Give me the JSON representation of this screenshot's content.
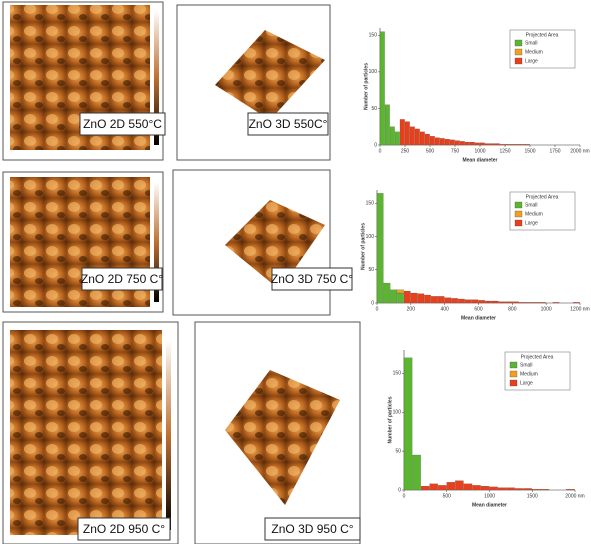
{
  "panels": [
    {
      "label": "ZnO 2D 550°C"
    },
    {
      "label": "ZnO 3D 550C°"
    },
    {
      "label": "ZnO 2D 750 C°"
    },
    {
      "label": "ZnO 3D 750 C°"
    },
    {
      "label": "ZnO 2D 950 C°"
    },
    {
      "label": "ZnO 3D 950 C°"
    }
  ],
  "chart_data": [
    {
      "type": "histogram",
      "x_label": "Mean diameter",
      "y_label": "Number of particles",
      "legend_title": "Projected Area",
      "legend": "upper right",
      "bins": [
        0,
        50,
        100,
        150,
        200,
        250,
        300,
        350,
        400,
        450,
        500,
        550,
        600,
        650,
        700,
        750,
        800,
        850,
        900,
        950,
        1000,
        1050,
        1100,
        1150,
        1200,
        1250,
        1300,
        1350,
        1400,
        1450,
        1500
      ],
      "series": [
        {
          "name": "Small",
          "color": "#5cb531",
          "values": [
            155,
            55,
            25,
            18,
            0,
            0,
            0,
            0,
            0,
            0,
            0,
            0,
            0,
            0,
            0,
            0,
            0,
            0,
            0,
            0,
            0,
            0,
            0,
            0,
            0,
            0,
            0,
            0,
            0,
            0
          ]
        },
        {
          "name": "Medium",
          "color": "#f0a020",
          "values": [
            0,
            0,
            0,
            0,
            0,
            0,
            0,
            0,
            0,
            0,
            0,
            0,
            0,
            0,
            0,
            0,
            0,
            0,
            0,
            0,
            0,
            0,
            0,
            0,
            0,
            0,
            0,
            0,
            0,
            0
          ]
        },
        {
          "name": "Large",
          "color": "#e8401c",
          "values": [
            0,
            0,
            0,
            0,
            35,
            32,
            25,
            22,
            18,
            15,
            12,
            10,
            9,
            8,
            7,
            6,
            5,
            4,
            4,
            3,
            3,
            2,
            2,
            2,
            1,
            1,
            1,
            1,
            1,
            1
          ]
        }
      ],
      "xlim": [
        0,
        2000
      ],
      "xticks": [
        0,
        250,
        500,
        750,
        1000,
        1250,
        1500,
        1750,
        {
          "value": 2000,
          "label": "2000 nm"
        }
      ],
      "ylim": [
        0,
        160
      ],
      "yticks": [
        0,
        50,
        100,
        150
      ]
    },
    {
      "type": "histogram",
      "x_label": "Mean diameter",
      "y_label": "Number of particles",
      "legend_title": "Projected Area",
      "legend": "upper right",
      "bins": [
        0,
        40,
        80,
        120,
        160,
        200,
        240,
        280,
        320,
        360,
        400,
        440,
        480,
        520,
        560,
        600,
        640,
        680,
        720,
        760,
        800,
        840,
        880,
        920,
        960,
        1000,
        1040,
        1080,
        1120,
        1160,
        1200
      ],
      "series": [
        {
          "name": "Small",
          "color": "#5cb531",
          "values": [
            165,
            30,
            20,
            15,
            0,
            0,
            0,
            0,
            0,
            0,
            0,
            0,
            0,
            0,
            0,
            0,
            0,
            0,
            0,
            0,
            0,
            0,
            0,
            0,
            0,
            0,
            0,
            0,
            0,
            0
          ]
        },
        {
          "name": "Medium",
          "color": "#f0a020",
          "values": [
            0,
            0,
            0,
            5,
            0,
            0,
            0,
            0,
            0,
            0,
            0,
            0,
            0,
            0,
            0,
            0,
            0,
            0,
            0,
            0,
            0,
            0,
            0,
            0,
            0,
            0,
            0,
            0,
            0,
            0
          ]
        },
        {
          "name": "Large",
          "color": "#e8401c",
          "values": [
            0,
            0,
            0,
            0,
            18,
            15,
            14,
            12,
            10,
            10,
            8,
            7,
            6,
            5,
            5,
            4,
            3,
            3,
            2,
            2,
            2,
            1,
            1,
            1,
            1,
            0,
            1,
            0,
            0,
            1
          ]
        }
      ],
      "xlim": [
        0,
        1200
      ],
      "xticks": [
        0,
        200,
        400,
        600,
        800,
        1000,
        {
          "value": 1200,
          "label": "1200 nm"
        }
      ],
      "ylim": [
        0,
        170
      ],
      "yticks": [
        0,
        50,
        100,
        150
      ]
    },
    {
      "type": "histogram",
      "x_label": "Mean diameter",
      "y_label": "Number of particles",
      "legend_title": "Projected Area",
      "legend": "upper right",
      "bins": [
        0,
        100,
        200,
        300,
        400,
        500,
        600,
        700,
        800,
        900,
        1000,
        1100,
        1200,
        1300,
        1400,
        1500,
        1600,
        1700,
        1800,
        1900,
        2000
      ],
      "series": [
        {
          "name": "Small",
          "color": "#5cb531",
          "values": [
            170,
            45,
            0,
            0,
            0,
            0,
            0,
            0,
            0,
            0,
            0,
            0,
            0,
            0,
            0,
            0,
            0,
            0,
            0,
            0
          ]
        },
        {
          "name": "Medium",
          "color": "#f0a020",
          "values": [
            0,
            0,
            0,
            0,
            0,
            0,
            0,
            0,
            0,
            0,
            0,
            0,
            0,
            0,
            0,
            0,
            0,
            0,
            0,
            0
          ]
        },
        {
          "name": "Large",
          "color": "#e8401c",
          "values": [
            0,
            0,
            5,
            8,
            6,
            10,
            12,
            8,
            6,
            5,
            4,
            3,
            3,
            2,
            2,
            1,
            1,
            0,
            0,
            1
          ]
        }
      ],
      "xlim": [
        0,
        2000
      ],
      "xticks": [
        0,
        500,
        1000,
        1500,
        {
          "value": 2000,
          "label": "2000 nm"
        }
      ],
      "ylim": [
        0,
        180
      ],
      "yticks": [
        0,
        50,
        100,
        150
      ]
    }
  ]
}
